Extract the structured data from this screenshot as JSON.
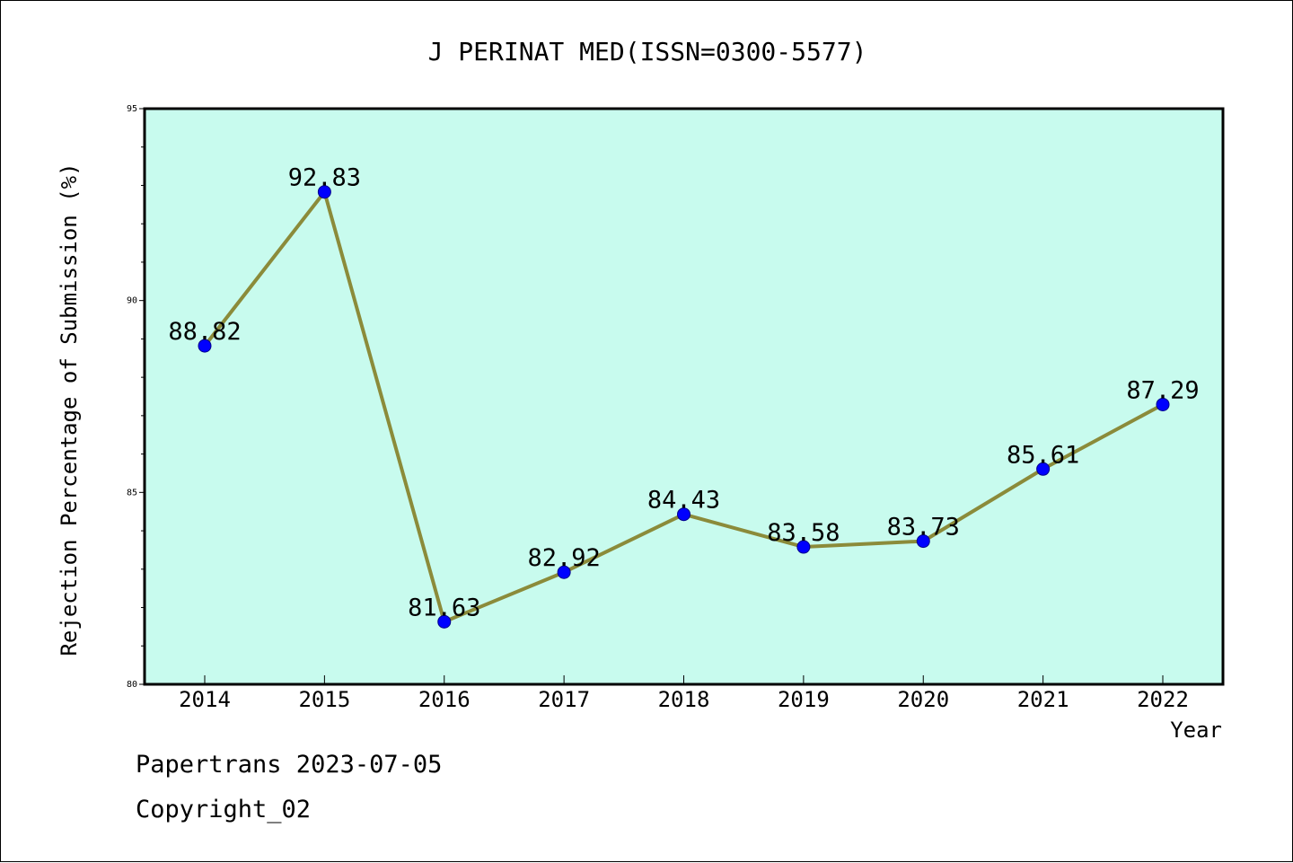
{
  "chart_data": {
    "type": "line",
    "title": "J PERINAT MED(ISSN=0300-5577)",
    "xlabel": "Year",
    "ylabel": "Rejection Percentage of Submission (%)",
    "x": [
      "2014",
      "2015",
      "2016",
      "2017",
      "2018",
      "2019",
      "2020",
      "2021",
      "2022"
    ],
    "y": [
      88.82,
      92.83,
      81.63,
      82.92,
      84.43,
      83.58,
      83.73,
      85.61,
      87.29
    ],
    "data_labels": [
      "88.82",
      "92.83",
      "81.63",
      "82.92",
      "84.43",
      "83.58",
      "83.73",
      "85.61",
      "87.29"
    ],
    "ylim": [
      80,
      95
    ],
    "yticks": [
      80,
      85,
      90,
      95
    ],
    "ytick_labels": [
      "80",
      "85",
      "90",
      "95"
    ],
    "grid": false,
    "legend": "none",
    "colors": {
      "plot_background": "#c8fbee",
      "line": "#8b8b3a",
      "marker": "#0000ff"
    }
  },
  "footer": {
    "line1": "Papertrans 2023-07-05",
    "line2": "Copyright_02"
  }
}
